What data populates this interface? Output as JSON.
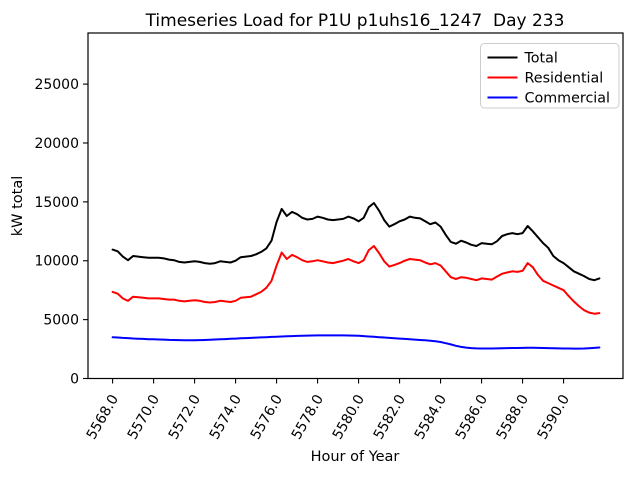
{
  "chart_data": {
    "type": "line",
    "title": "Timeseries Load for P1U p1uhs16_1247  Day 233",
    "xlabel": "Hour of Year",
    "ylabel": "kW total",
    "x_start": 5568.0,
    "x_step": 0.25,
    "xlim": [
      5566.8,
      5592.9
    ],
    "ylim": [
      0,
      29340
    ],
    "grid": false,
    "legend_position": "upper right",
    "x_tick_values": [
      5568,
      5570,
      5572,
      5574,
      5576,
      5578,
      5580,
      5582,
      5584,
      5586,
      5588,
      5590
    ],
    "x_tick_labels": [
      "5568.0",
      "5570.0",
      "5572.0",
      "5574.0",
      "5576.0",
      "5578.0",
      "5580.0",
      "5582.0",
      "5584.0",
      "5586.0",
      "5588.0",
      "5590.0"
    ],
    "y_tick_values": [
      0,
      5000,
      10000,
      15000,
      20000,
      25000
    ],
    "y_tick_labels": [
      "0",
      "5000",
      "10000",
      "15000",
      "20000",
      "25000"
    ],
    "series": [
      {
        "name": "Total",
        "color": "#000000",
        "values": [
          10950,
          10800,
          10350,
          10050,
          10400,
          10350,
          10300,
          10250,
          10250,
          10250,
          10200,
          10100,
          10050,
          9900,
          9850,
          9900,
          9950,
          9900,
          9800,
          9750,
          9800,
          9950,
          9900,
          9850,
          10000,
          10300,
          10350,
          10400,
          10550,
          10750,
          11050,
          11700,
          13300,
          14400,
          13800,
          14150,
          13950,
          13650,
          13500,
          13550,
          13750,
          13650,
          13500,
          13450,
          13500,
          13550,
          13750,
          13600,
          13350,
          13650,
          14550,
          14900,
          14250,
          13450,
          12900,
          13100,
          13350,
          13500,
          13750,
          13650,
          13600,
          13350,
          13100,
          13250,
          12900,
          12200,
          11600,
          11450,
          11700,
          11550,
          11350,
          11250,
          11500,
          11450,
          11400,
          11650,
          12100,
          12250,
          12350,
          12250,
          12350,
          12950,
          12500,
          12000,
          11500,
          11100,
          10400,
          10050,
          9800,
          9450,
          9100,
          8900,
          8700,
          8450,
          8350,
          8500
        ]
      },
      {
        "name": "Residential",
        "color": "#ff0000",
        "values": [
          7350,
          7200,
          6800,
          6600,
          6950,
          6900,
          6850,
          6800,
          6800,
          6800,
          6750,
          6700,
          6700,
          6600,
          6550,
          6600,
          6650,
          6600,
          6500,
          6450,
          6500,
          6600,
          6550,
          6500,
          6600,
          6850,
          6900,
          6950,
          7150,
          7350,
          7700,
          8300,
          9600,
          10700,
          10150,
          10500,
          10300,
          10050,
          9900,
          9950,
          10050,
          9950,
          9850,
          9800,
          9900,
          10000,
          10150,
          9950,
          9800,
          10050,
          10900,
          11250,
          10650,
          9950,
          9500,
          9650,
          9800,
          10000,
          10150,
          10100,
          10050,
          9850,
          9700,
          9800,
          9600,
          9100,
          8600,
          8450,
          8600,
          8550,
          8450,
          8350,
          8500,
          8450,
          8400,
          8650,
          8900,
          9000,
          9100,
          9050,
          9150,
          9800,
          9450,
          8800,
          8300,
          8100,
          7900,
          7700,
          7500,
          7000,
          6550,
          6150,
          5800,
          5600,
          5500,
          5550
        ]
      },
      {
        "name": "Commercial",
        "color": "#0000ff",
        "values": [
          3500,
          3480,
          3450,
          3430,
          3400,
          3380,
          3360,
          3340,
          3330,
          3310,
          3300,
          3280,
          3270,
          3260,
          3250,
          3250,
          3250,
          3260,
          3270,
          3290,
          3310,
          3330,
          3350,
          3370,
          3390,
          3410,
          3430,
          3450,
          3470,
          3490,
          3510,
          3530,
          3550,
          3570,
          3590,
          3600,
          3620,
          3630,
          3640,
          3650,
          3660,
          3660,
          3660,
          3660,
          3660,
          3660,
          3650,
          3640,
          3630,
          3600,
          3570,
          3540,
          3510,
          3480,
          3450,
          3420,
          3390,
          3360,
          3330,
          3300,
          3270,
          3240,
          3210,
          3170,
          3100,
          3000,
          2900,
          2780,
          2680,
          2620,
          2580,
          2560,
          2550,
          2550,
          2550,
          2560,
          2570,
          2580,
          2590,
          2590,
          2600,
          2610,
          2610,
          2600,
          2590,
          2580,
          2570,
          2560,
          2550,
          2545,
          2540,
          2540,
          2550,
          2570,
          2600,
          2630
        ]
      }
    ]
  }
}
